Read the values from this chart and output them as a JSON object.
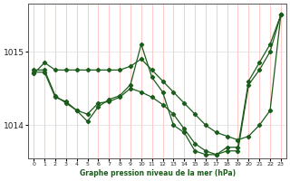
{
  "bg_color": "#ffffff",
  "grid_color": "#ffcccc",
  "line_color": "#1a5c1a",
  "xlabel": "Graphe pression niveau de la mer (hPa)",
  "xlim": [
    -0.5,
    23.5
  ],
  "ylim": [
    1013.55,
    1015.65
  ],
  "yticks": [
    1014.0,
    1015.0
  ],
  "xticks": [
    0,
    1,
    2,
    3,
    4,
    5,
    6,
    7,
    8,
    9,
    10,
    11,
    12,
    13,
    14,
    15,
    16,
    17,
    18,
    19,
    20,
    21,
    22,
    23
  ],
  "series": [
    {
      "x": [
        0,
        1,
        2,
        3,
        4,
        5,
        6,
        7,
        8,
        9,
        10,
        11,
        12,
        13,
        14,
        15,
        16,
        17,
        18,
        19,
        20,
        21,
        22,
        23
      ],
      "y": [
        1014.7,
        1014.85,
        1014.75,
        1014.75,
        1014.75,
        1014.75,
        1014.75,
        1014.75,
        1014.75,
        1014.8,
        1014.9,
        1014.75,
        1014.6,
        1014.45,
        1014.3,
        1014.15,
        1014.0,
        1013.9,
        1013.85,
        1013.8,
        1013.85,
        1014.0,
        1014.2,
        1015.5
      ]
    },
    {
      "x": [
        0,
        1,
        2,
        3,
        4,
        5,
        6,
        7,
        8,
        9,
        10,
        11,
        12,
        13,
        14,
        15,
        16,
        17,
        18,
        19,
        20,
        21,
        22,
        23
      ],
      "y": [
        1014.75,
        1014.75,
        1014.4,
        1014.3,
        1014.2,
        1014.05,
        1014.25,
        1014.35,
        1014.4,
        1014.55,
        1015.1,
        1014.65,
        1014.45,
        1014.0,
        1013.9,
        1013.65,
        1013.6,
        1013.6,
        1013.7,
        1013.7,
        1014.6,
        1014.85,
        1015.1,
        1015.5
      ]
    },
    {
      "x": [
        0,
        1,
        2,
        3,
        4,
        5,
        6,
        7,
        8,
        9,
        10,
        11,
        12,
        13,
        14,
        15,
        16,
        17,
        18,
        19,
        20,
        21,
        22,
        23
      ],
      "y": [
        1014.72,
        1014.72,
        1014.38,
        1014.32,
        1014.2,
        1014.15,
        1014.3,
        1014.32,
        1014.38,
        1014.5,
        1014.45,
        1014.38,
        1014.28,
        1014.15,
        1013.95,
        1013.75,
        1013.65,
        1013.6,
        1013.65,
        1013.65,
        1014.55,
        1014.75,
        1015.0,
        1015.5
      ]
    }
  ]
}
